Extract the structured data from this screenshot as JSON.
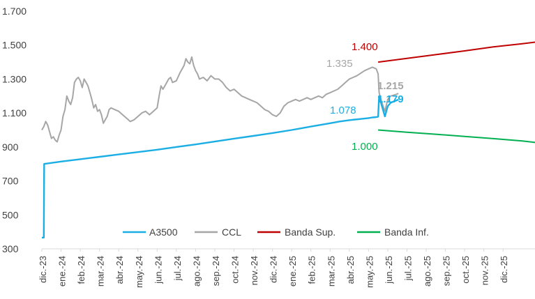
{
  "chart_data": {
    "type": "line",
    "title": "",
    "xlabel": "",
    "ylabel": "",
    "ylim": [
      300,
      1700
    ],
    "yticks": [
      "300",
      "500",
      "700",
      "900",
      "1.100",
      "1.300",
      "1.500",
      "1.700"
    ],
    "ytick_values": [
      300,
      500,
      700,
      900,
      1100,
      1300,
      1500,
      1700
    ],
    "xticks": [
      "dic.-23",
      "ene.-24",
      "feb.-24",
      "mar.-24",
      "abr.-24",
      "may.-24",
      "jun.-24",
      "jul.-24",
      "ago.-24",
      "sep.-24",
      "oct.-24",
      "nov.-24",
      "dic.-24",
      "ene.-25",
      "feb.-25",
      "mar.-25",
      "abr.-25",
      "may.-25",
      "jun.-25",
      "jul.-25",
      "ago.-25",
      "sep.-25",
      "oct.-25",
      "nov.-25",
      "dic.-25"
    ],
    "legend": [
      "A3500",
      "CCL",
      "Banda Sup.",
      "Banda Inf."
    ],
    "legend_position": "bottom-center",
    "series": [
      {
        "name": "A3500",
        "color": "#1BAEE4",
        "points": [
          [
            0,
            366
          ],
          [
            0.1,
            366
          ],
          [
            0.12,
            800
          ],
          [
            1,
            814
          ],
          [
            2,
            828
          ],
          [
            3,
            842
          ],
          [
            4,
            856
          ],
          [
            5,
            870
          ],
          [
            6,
            884
          ],
          [
            7,
            900
          ],
          [
            8,
            915
          ],
          [
            9,
            932
          ],
          [
            10,
            949
          ],
          [
            11,
            965
          ],
          [
            12,
            982
          ],
          [
            13,
            1000
          ],
          [
            13.5,
            1010
          ],
          [
            14,
            1020
          ],
          [
            14.5,
            1030
          ],
          [
            15,
            1040
          ],
          [
            15.5,
            1050
          ],
          [
            16,
            1058
          ],
          [
            16.5,
            1064
          ],
          [
            17,
            1070
          ],
          [
            17.2,
            1074
          ],
          [
            17.4,
            1076
          ],
          [
            17.5,
            1078
          ],
          [
            17.55,
            1200
          ],
          [
            17.7,
            1140
          ],
          [
            17.85,
            1080
          ],
          [
            18,
            1140
          ],
          [
            18.15,
            1160
          ],
          [
            18.3,
            1168
          ],
          [
            18.45,
            1174
          ],
          [
            18.55,
            1179
          ]
        ]
      },
      {
        "name": "CCL",
        "color": "#A6A6A6",
        "points": [
          [
            0,
            1000
          ],
          [
            0.1,
            1020
          ],
          [
            0.2,
            1050
          ],
          [
            0.3,
            1030
          ],
          [
            0.4,
            990
          ],
          [
            0.5,
            950
          ],
          [
            0.6,
            960
          ],
          [
            0.7,
            940
          ],
          [
            0.8,
            930
          ],
          [
            0.9,
            970
          ],
          [
            1.0,
            1000
          ],
          [
            1.1,
            1080
          ],
          [
            1.2,
            1120
          ],
          [
            1.3,
            1200
          ],
          [
            1.4,
            1170
          ],
          [
            1.5,
            1150
          ],
          [
            1.6,
            1190
          ],
          [
            1.7,
            1280
          ],
          [
            1.8,
            1300
          ],
          [
            1.9,
            1310
          ],
          [
            2.0,
            1290
          ],
          [
            2.1,
            1250
          ],
          [
            2.2,
            1300
          ],
          [
            2.3,
            1280
          ],
          [
            2.4,
            1260
          ],
          [
            2.5,
            1220
          ],
          [
            2.6,
            1180
          ],
          [
            2.7,
            1130
          ],
          [
            2.8,
            1150
          ],
          [
            2.9,
            1110
          ],
          [
            3.0,
            1120
          ],
          [
            3.1,
            1090
          ],
          [
            3.2,
            1040
          ],
          [
            3.3,
            1060
          ],
          [
            3.4,
            1080
          ],
          [
            3.5,
            1120
          ],
          [
            3.6,
            1130
          ],
          [
            3.8,
            1120
          ],
          [
            4.0,
            1110
          ],
          [
            4.2,
            1090
          ],
          [
            4.4,
            1070
          ],
          [
            4.6,
            1050
          ],
          [
            4.8,
            1060
          ],
          [
            5.0,
            1080
          ],
          [
            5.2,
            1100
          ],
          [
            5.4,
            1110
          ],
          [
            5.6,
            1090
          ],
          [
            5.8,
            1110
          ],
          [
            6.0,
            1130
          ],
          [
            6.1,
            1200
          ],
          [
            6.2,
            1260
          ],
          [
            6.3,
            1240
          ],
          [
            6.4,
            1260
          ],
          [
            6.5,
            1280
          ],
          [
            6.6,
            1300
          ],
          [
            6.7,
            1310
          ],
          [
            6.8,
            1280
          ],
          [
            7.0,
            1290
          ],
          [
            7.2,
            1340
          ],
          [
            7.4,
            1380
          ],
          [
            7.5,
            1420
          ],
          [
            7.6,
            1400
          ],
          [
            7.7,
            1390
          ],
          [
            7.8,
            1430
          ],
          [
            7.9,
            1380
          ],
          [
            8.0,
            1350
          ],
          [
            8.1,
            1330
          ],
          [
            8.2,
            1300
          ],
          [
            8.4,
            1310
          ],
          [
            8.6,
            1290
          ],
          [
            8.8,
            1320
          ],
          [
            9.0,
            1300
          ],
          [
            9.2,
            1300
          ],
          [
            9.4,
            1280
          ],
          [
            9.6,
            1250
          ],
          [
            9.8,
            1230
          ],
          [
            10.0,
            1240
          ],
          [
            10.2,
            1220
          ],
          [
            10.4,
            1200
          ],
          [
            10.6,
            1190
          ],
          [
            10.8,
            1180
          ],
          [
            11.0,
            1170
          ],
          [
            11.2,
            1160
          ],
          [
            11.4,
            1140
          ],
          [
            11.6,
            1120
          ],
          [
            11.8,
            1110
          ],
          [
            12.0,
            1090
          ],
          [
            12.2,
            1080
          ],
          [
            12.4,
            1100
          ],
          [
            12.6,
            1140
          ],
          [
            12.8,
            1160
          ],
          [
            13.0,
            1170
          ],
          [
            13.2,
            1180
          ],
          [
            13.4,
            1170
          ],
          [
            13.6,
            1180
          ],
          [
            13.8,
            1190
          ],
          [
            14.0,
            1180
          ],
          [
            14.2,
            1190
          ],
          [
            14.4,
            1200
          ],
          [
            14.6,
            1190
          ],
          [
            14.8,
            1210
          ],
          [
            15.0,
            1220
          ],
          [
            15.2,
            1230
          ],
          [
            15.4,
            1240
          ],
          [
            15.6,
            1260
          ],
          [
            15.8,
            1280
          ],
          [
            16.0,
            1300
          ],
          [
            16.2,
            1310
          ],
          [
            16.4,
            1320
          ],
          [
            16.6,
            1335
          ],
          [
            16.8,
            1350
          ],
          [
            17.0,
            1360
          ],
          [
            17.2,
            1370
          ],
          [
            17.4,
            1360
          ],
          [
            17.5,
            1330
          ],
          [
            17.55,
            1220
          ],
          [
            17.7,
            1160
          ],
          [
            17.85,
            1110
          ],
          [
            18.0,
            1180
          ],
          [
            18.15,
            1200
          ],
          [
            18.3,
            1205
          ],
          [
            18.45,
            1210
          ],
          [
            18.55,
            1215
          ]
        ]
      },
      {
        "name": "Banda Sup.",
        "color": "#C00000",
        "points": [
          [
            17.5,
            1400
          ],
          [
            19,
            1422
          ],
          [
            20.5,
            1444
          ],
          [
            22,
            1466
          ],
          [
            23.5,
            1490
          ],
          [
            25,
            1508
          ],
          [
            26.2,
            1525
          ]
        ]
      },
      {
        "name": "Banda Inf.",
        "color": "#00B050",
        "points": [
          [
            17.5,
            1000
          ],
          [
            19,
            987
          ],
          [
            20.5,
            975
          ],
          [
            22,
            962
          ],
          [
            23.5,
            949
          ],
          [
            25,
            935
          ],
          [
            26.2,
            920
          ]
        ]
      }
    ],
    "annotations": [
      {
        "text": "1.400",
        "series": "Banda Sup.",
        "color": "#C00000",
        "bold": false
      },
      {
        "text": "1.335",
        "series": "CCL",
        "color": "#A6A6A6",
        "bold": false
      },
      {
        "text": "1.215",
        "series": "CCL",
        "color": "#A6A6A6",
        "bold": true
      },
      {
        "text": "1.078",
        "series": "A3500",
        "color": "#1BAEE4",
        "bold": false
      },
      {
        "text": "1.179",
        "series": "A3500",
        "color": "#1BAEE4",
        "bold": true
      },
      {
        "text": "1.000",
        "series": "Banda Inf.",
        "color": "#00B050",
        "bold": false
      }
    ]
  }
}
